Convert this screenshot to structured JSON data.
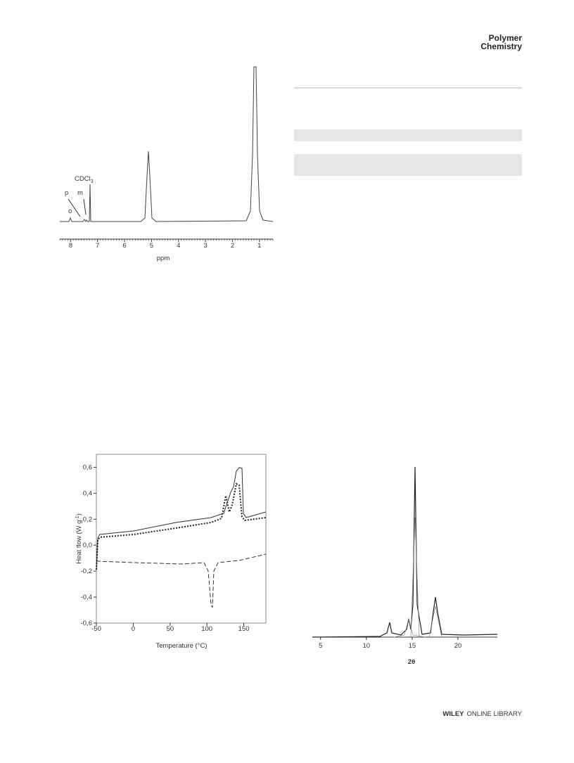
{
  "header": {
    "journal_line1": "Polymer",
    "journal_line2": "Chemistry"
  },
  "figures": [
    {
      "type": "nmr",
      "xlabel": "ppm",
      "xlim": [
        8.4,
        0.5
      ],
      "xticks": [
        8,
        7,
        6,
        5,
        4,
        3,
        2,
        1
      ],
      "labels": {
        "p": "p",
        "m": "m",
        "o": "o",
        "solvent": "CDCl",
        "solvent_sub": "3"
      }
    },
    {
      "type": "dsc",
      "xlabel": "Temperature (°C)",
      "ylabel": "Heat flow (W g",
      "ylabel_sup": "-1",
      "ylabel_end": ")",
      "xlim": [
        -50,
        180
      ],
      "ylim": [
        -0.6,
        0.7
      ],
      "xticks": [
        -50,
        0,
        50,
        100,
        150
      ],
      "yticks": [
        {
          "value": -0.6,
          "label": "-0,6"
        },
        {
          "value": -0.4,
          "label": "-0,4"
        },
        {
          "value": -0.2,
          "label": "-0,2"
        },
        {
          "value": 0,
          "label": "0,0"
        },
        {
          "value": 0.2,
          "label": "0,2"
        },
        {
          "value": 0.4,
          "label": "0,4"
        },
        {
          "value": 0.6,
          "label": "0,6"
        }
      ]
    },
    {
      "type": "xrd",
      "xlabel": "2θ",
      "xlim": [
        4.1,
        24.3
      ],
      "xticks": [
        5,
        10,
        15,
        20
      ]
    }
  ],
  "footer": {
    "brand": "WILEY",
    "library": "ONLINE LIBRARY"
  }
}
